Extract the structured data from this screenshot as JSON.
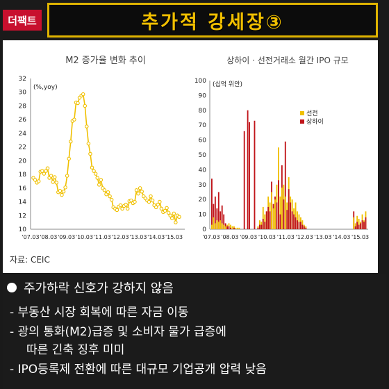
{
  "tag": "더팩트",
  "title": "추가적 강세장③",
  "chart_data": [
    {
      "type": "line",
      "title": "M2 증가율 변화 추이",
      "unit_label": "(%,yoy)",
      "ylim": [
        10,
        32
      ],
      "yticks": [
        10,
        12,
        14,
        16,
        18,
        20,
        22,
        24,
        26,
        28,
        30,
        32
      ],
      "xticks": [
        "'07.03",
        "'08.03",
        "'09.03",
        "'10.03",
        "'11.03",
        "'12.03",
        "'13.03",
        "'14.03",
        "'15.03"
      ],
      "series": [
        {
          "color": "#f0c000",
          "values": [
            17.5,
            17.2,
            16.8,
            17.0,
            18.4,
            18.5,
            18.1,
            18.5,
            18.9,
            17.5,
            17.8,
            16.9,
            17.6,
            16.8,
            15.4,
            15.6,
            15.0,
            15.5,
            16.1,
            17.8,
            20.3,
            22.8,
            25.8,
            26.0,
            28.5,
            28.4,
            29.2,
            29.5,
            29.7,
            28.0,
            25.0,
            22.5,
            21.0,
            19.0,
            18.5,
            18.1,
            17.5,
            16.5,
            17.2,
            16.0,
            15.7,
            15.1,
            15.4,
            14.8,
            14.3,
            13.2,
            13.0,
            12.8,
            13.3,
            13.5,
            13.0,
            13.4,
            13.6,
            13.0,
            14.1,
            14.2,
            13.8,
            14.0,
            15.7,
            15.2,
            16.0,
            15.5,
            14.8,
            14.5,
            14.2,
            14.0,
            14.8,
            14.2,
            13.5,
            13.2,
            13.6,
            14.0,
            13.0,
            12.5,
            12.7,
            13.1,
            12.4,
            12.0,
            11.6,
            12.3,
            11.0,
            12.0,
            11.8
          ]
        }
      ],
      "source": "자료: CEIC"
    },
    {
      "type": "bar",
      "title": "상하이 · 선전거래소 월간 IPO 규모",
      "unit_label": "(십억 위안)",
      "ylim": [
        0,
        100
      ],
      "yticks": [
        0,
        10,
        20,
        30,
        40,
        50,
        60,
        70,
        80,
        90,
        100
      ],
      "xticks": [
        "'07.03",
        "'08.03",
        "'09.03",
        "'10.03",
        "'11.03",
        "'12.03",
        "'13.03",
        "'14.03",
        "'15.03"
      ],
      "series": [
        {
          "name": "선전",
          "color": "#f0c000",
          "values": [
            3,
            8,
            4,
            6,
            5,
            6,
            4,
            3,
            2,
            3,
            4,
            3,
            2,
            2,
            1,
            1,
            1,
            0,
            0,
            0,
            0,
            0,
            0,
            0,
            0,
            0,
            0,
            2,
            6,
            5,
            15,
            10,
            12,
            22,
            18,
            25,
            14,
            20,
            30,
            55,
            22,
            28,
            30,
            22,
            18,
            35,
            22,
            20,
            14,
            18,
            12,
            10,
            8,
            6,
            3,
            2,
            0,
            0,
            0,
            0,
            0,
            0,
            0,
            0,
            0,
            0,
            0,
            0,
            0,
            0,
            0,
            0,
            0,
            0,
            0,
            0,
            0,
            0,
            0,
            0,
            0,
            0,
            0,
            8,
            4,
            9,
            7,
            5,
            10,
            6,
            12
          ]
        },
        {
          "name": "상하이",
          "color": "#c0151a",
          "values": [
            34,
            17,
            22,
            14,
            25,
            12,
            16,
            10,
            4,
            2,
            2,
            1,
            0,
            1,
            0,
            0,
            0,
            0,
            0,
            0,
            0,
            0,
            0,
            0,
            0,
            0,
            0,
            1,
            3,
            3,
            7,
            5,
            12,
            15,
            12,
            32,
            17,
            22,
            18,
            33,
            10,
            8,
            20,
            16,
            13,
            27,
            18,
            12,
            10,
            8,
            6,
            5,
            5,
            3,
            2,
            1,
            0,
            0,
            0,
            0,
            0,
            0,
            0,
            0,
            0,
            0,
            0,
            0,
            0,
            0,
            0,
            0,
            0,
            0,
            0,
            0,
            0,
            0,
            0,
            0,
            0,
            0,
            0,
            12,
            2,
            5,
            3,
            4,
            6,
            5,
            8
          ]
        }
      ],
      "extra_shanghai_peaks": [
        {
          "index": 19,
          "value": 66
        },
        {
          "index": 21,
          "value": 80
        },
        {
          "index": 22,
          "value": 72
        },
        {
          "index": 25,
          "value": 73
        },
        {
          "index": 43,
          "value": 59
        },
        {
          "index": 41,
          "value": 43
        }
      ],
      "source": "자료: CEIC"
    }
  ],
  "bullets": {
    "main": "주가하락 신호가 강하지 않음",
    "sub1": "- 부동산 시장 회복에 따른 자금 이동",
    "sub2": "- 광의 통화(M2)급증 및 소비자 물가 급증에",
    "sub2b": "따른 긴축 징후 미미",
    "sub3": "- IPO등록제 전환에 따른 대규모 기업공개 압력 낮음"
  }
}
